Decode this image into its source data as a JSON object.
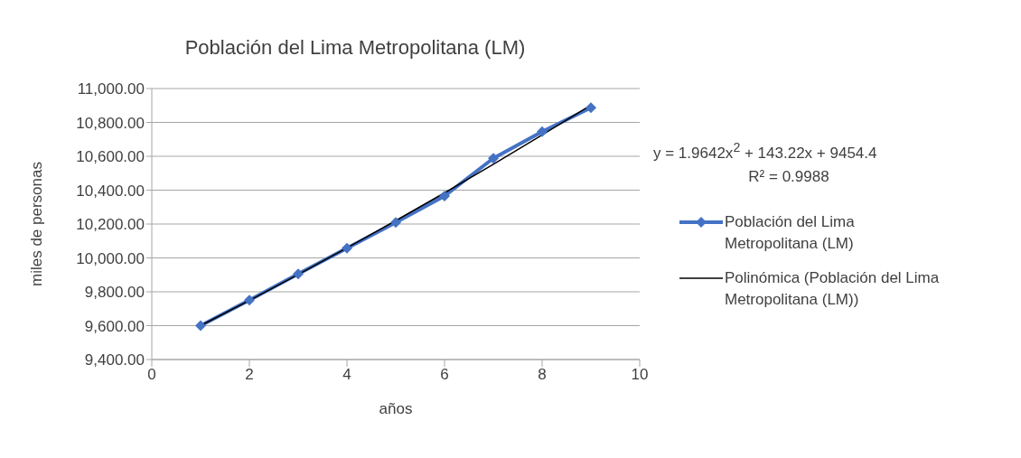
{
  "chart_data": {
    "type": "line",
    "title": "Población del Lima Metropolitana (LM)",
    "xlabel": "años",
    "ylabel": "miles de personas",
    "xlim": [
      0,
      10
    ],
    "xticks": [
      0,
      2,
      4,
      6,
      8,
      10
    ],
    "ylim": [
      9400,
      11000
    ],
    "yticks": [
      {
        "value": 9400,
        "label": "9,400.00"
      },
      {
        "value": 9600,
        "label": "9,600.00"
      },
      {
        "value": 9800,
        "label": "9,800.00"
      },
      {
        "value": 10000,
        "label": "10,000.00"
      },
      {
        "value": 10200,
        "label": "10,200.00"
      },
      {
        "value": 10400,
        "label": "10,400.00"
      },
      {
        "value": 10600,
        "label": "10,600.00"
      },
      {
        "value": 10800,
        "label": "10,800.00"
      },
      {
        "value": 11000,
        "label": "11,000.00"
      }
    ],
    "grid": "y",
    "legend": "right",
    "annotations": [
      "y = 1.9642x$^{2}$ + 143.22x + 9454.4",
      "R² = 0.9988"
    ],
    "series": [
      {
        "name": "Población del Lima Metropolitana (LM)",
        "color": "#4472c4",
        "marker": "diamond",
        "line_style": "solid",
        "x": [
          1,
          2,
          3,
          4,
          5,
          6,
          7,
          8,
          9
        ],
        "values": [
          9600,
          9751,
          9905,
          10057,
          10209,
          10366,
          10588,
          10745,
          10887
        ]
      },
      {
        "name": "Polinómica (Población del Lima Metropolitana (LM))",
        "type": "line",
        "color": "#000000",
        "marker": "none",
        "line_style": "solid",
        "x": [
          1,
          2,
          3,
          4,
          5,
          6,
          7,
          8,
          9
        ],
        "values": [
          9600,
          9749,
          9902,
          10059,
          10220,
          10384,
          10553,
          10726,
          10902
        ]
      }
    ]
  }
}
